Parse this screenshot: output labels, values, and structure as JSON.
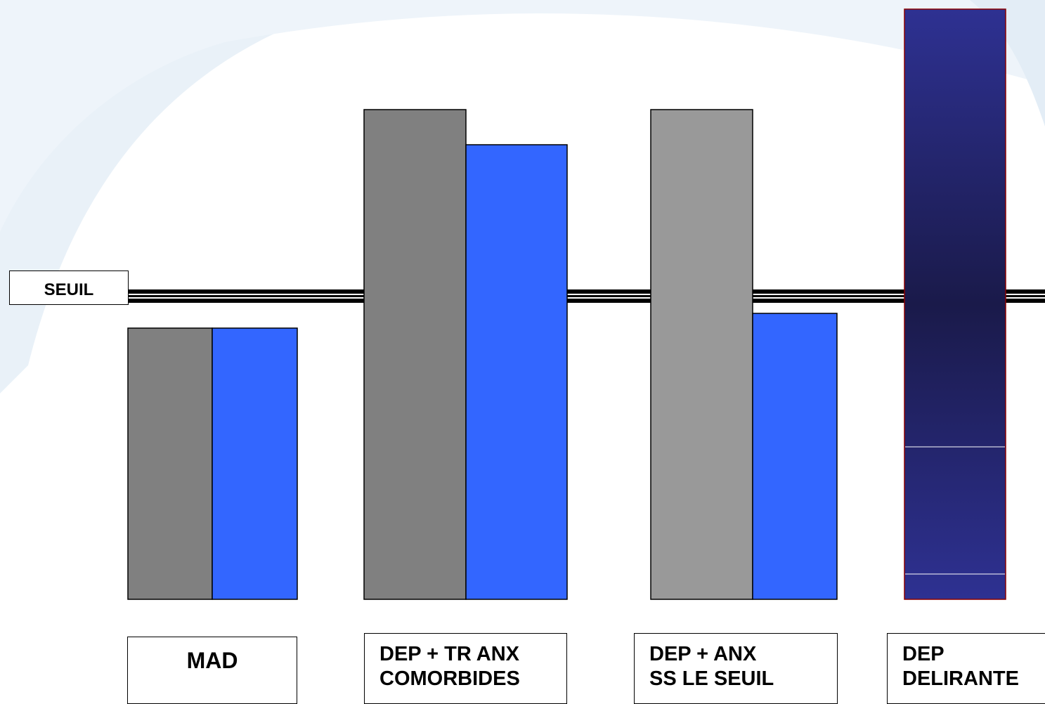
{
  "threshold_label": "SEUIL",
  "colors": {
    "bar_dark_grey": "#808080",
    "bar_light_grey": "#999999",
    "bar_blue": "#3366ff",
    "bar_navy_top": "#2e3192",
    "bar_navy_mid": "#1a1a4a",
    "bar_navy_border": "#8b0000",
    "threshold_line": "#000000",
    "background_swoosh": "#e6f0f8"
  },
  "groups": [
    {
      "label_lines": [
        "MAD"
      ],
      "bars": [
        {
          "color_key": "bar_dark_grey",
          "level": 0.46
        },
        {
          "color_key": "bar_blue",
          "level": 0.46
        }
      ]
    },
    {
      "label_lines": [
        "DEP + TR ANX",
        "COMORBIDES"
      ],
      "bars": [
        {
          "color_key": "bar_dark_grey",
          "level": 0.83
        },
        {
          "color_key": "bar_blue",
          "level": 0.77
        }
      ]
    },
    {
      "label_lines": [
        "DEP + ANX",
        "SS LE  SEUIL"
      ],
      "bars": [
        {
          "color_key": "bar_light_grey",
          "level": 0.83
        },
        {
          "color_key": "bar_blue",
          "level": 0.485
        }
      ]
    },
    {
      "label_lines": [
        "DEP",
        "DELIRANTE"
      ],
      "bars": [
        {
          "color_key": "bar_navy",
          "level": 1.0
        }
      ]
    }
  ]
}
